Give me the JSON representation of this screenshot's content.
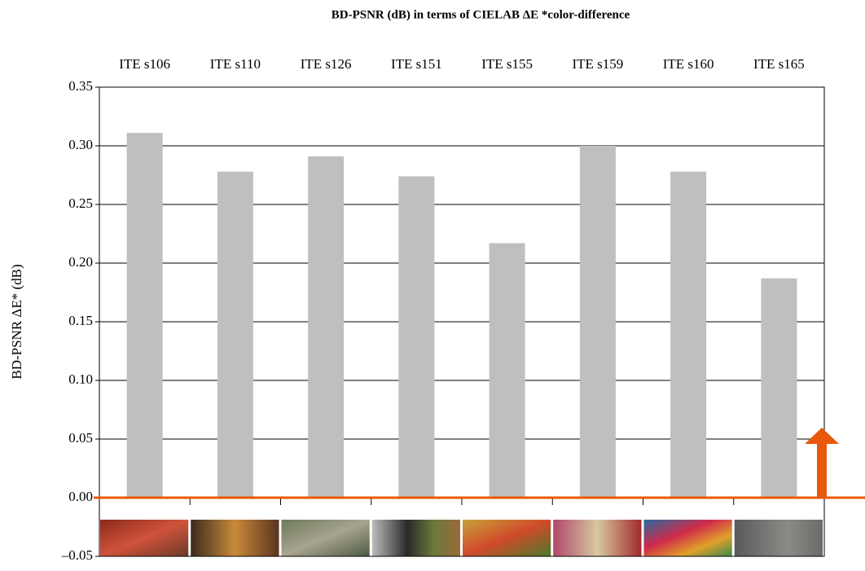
{
  "chart_data": {
    "type": "bar",
    "title": "BD-PSNR (dB) in terms of CIELAB ΔE *color-difference",
    "y_label": "BD-PSNR ΔE* (dB)",
    "categories": [
      "ITE s106",
      "ITE s110",
      "ITE s126",
      "ITE s151",
      "ITE s155",
      "ITE s159",
      "ITE s160",
      "ITE s165"
    ],
    "values": [
      0.311,
      0.278,
      0.291,
      0.274,
      0.217,
      0.3,
      0.278,
      0.187
    ],
    "color": "#c0bfbd",
    "ylim": [
      -0.05,
      0.35
    ],
    "yticks": [
      0.35,
      {
        "value": 0.3,
        "label": "0.30"
      },
      0.25,
      {
        "value": 0.2,
        "label": "0.20"
      },
      0.15,
      {
        "value": 0.1,
        "label": "0.10"
      },
      0.05,
      {
        "value": 0,
        "label": "0.00"
      },
      {
        "value": -0.05,
        "label": "–0.05"
      }
    ],
    "grid": true
  }
}
